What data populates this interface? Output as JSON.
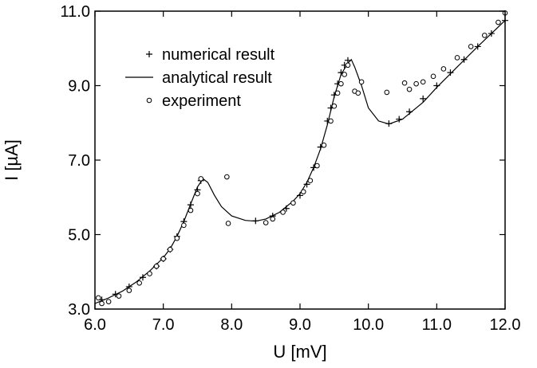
{
  "chart_data": {
    "type": "scatter",
    "title": "",
    "xlabel": "U [mV]",
    "ylabel": "I [µA]",
    "xlim": [
      6.0,
      12.0
    ],
    "ylim": [
      3.0,
      11.0
    ],
    "x_ticks": [
      "6.0",
      "7.0",
      "8.0",
      "9.0",
      "10.0",
      "11.0",
      "12.0"
    ],
    "y_ticks": [
      "3.0",
      "5.0",
      "7.0",
      "9.0",
      "11.0"
    ],
    "grid": false,
    "legend_position": "top-left",
    "series": [
      {
        "name": "numerical result",
        "marker": "plus",
        "x": [
          6.1,
          6.3,
          6.5,
          6.7,
          6.9,
          7.0,
          7.1,
          7.2,
          7.3,
          7.4,
          7.5,
          7.55,
          8.35,
          8.6,
          8.8,
          9.0,
          9.1,
          9.2,
          9.3,
          9.4,
          9.45,
          9.5,
          9.55,
          9.6,
          9.65,
          9.7,
          10.3,
          10.45,
          10.6,
          10.8,
          11.0,
          11.2,
          11.4,
          11.6,
          11.8,
          12.0
        ],
        "y": [
          3.25,
          3.4,
          3.6,
          3.85,
          4.15,
          4.35,
          4.6,
          4.95,
          5.35,
          5.8,
          6.2,
          6.45,
          5.37,
          5.5,
          5.7,
          6.05,
          6.35,
          6.8,
          7.35,
          8.05,
          8.4,
          8.75,
          9.05,
          9.35,
          9.55,
          9.68,
          7.98,
          8.1,
          8.3,
          8.65,
          9.0,
          9.35,
          9.7,
          10.05,
          10.4,
          10.75
        ]
      },
      {
        "name": "analytical result",
        "marker": "line",
        "x": [
          6.0,
          6.2,
          6.4,
          6.6,
          6.8,
          7.0,
          7.1,
          7.2,
          7.3,
          7.4,
          7.5,
          7.58,
          7.65,
          7.75,
          7.85,
          8.0,
          8.2,
          8.35,
          8.5,
          8.7,
          8.9,
          9.0,
          9.1,
          9.2,
          9.3,
          9.4,
          9.5,
          9.6,
          9.7,
          9.75,
          9.8,
          9.9,
          10.0,
          10.15,
          10.3,
          10.5,
          10.8,
          11.0,
          11.3,
          11.6,
          11.8,
          12.0
        ],
        "y": [
          3.15,
          3.3,
          3.48,
          3.72,
          4.02,
          4.38,
          4.62,
          4.95,
          5.35,
          5.82,
          6.28,
          6.5,
          6.4,
          6.05,
          5.75,
          5.5,
          5.38,
          5.36,
          5.42,
          5.6,
          5.9,
          6.1,
          6.4,
          6.8,
          7.3,
          7.95,
          8.7,
          9.3,
          9.6,
          9.7,
          9.5,
          9.0,
          8.4,
          8.05,
          7.97,
          8.1,
          8.55,
          8.95,
          9.5,
          10.05,
          10.4,
          10.75
        ]
      },
      {
        "name": "experiment",
        "marker": "circle",
        "x": [
          6.05,
          6.1,
          6.2,
          6.35,
          6.5,
          6.65,
          6.8,
          6.9,
          7.0,
          7.1,
          7.2,
          7.3,
          7.4,
          7.5,
          7.55,
          7.93,
          7.95,
          8.5,
          8.6,
          8.75,
          8.9,
          9.05,
          9.15,
          9.25,
          9.35,
          9.45,
          9.5,
          9.55,
          9.6,
          9.65,
          9.7,
          9.8,
          9.85,
          9.9,
          10.27,
          10.53,
          10.6,
          10.7,
          10.8,
          10.95,
          11.1,
          11.3,
          11.5,
          11.7,
          11.9,
          12.0
        ],
        "y": [
          3.3,
          3.15,
          3.2,
          3.35,
          3.5,
          3.7,
          3.95,
          4.15,
          4.35,
          4.6,
          4.9,
          5.25,
          5.65,
          6.1,
          6.5,
          6.55,
          5.3,
          5.32,
          5.42,
          5.6,
          5.85,
          6.15,
          6.45,
          6.85,
          7.4,
          8.05,
          8.45,
          8.8,
          9.05,
          9.3,
          9.55,
          8.85,
          8.8,
          9.1,
          8.82,
          9.07,
          8.9,
          9.05,
          9.1,
          9.25,
          9.45,
          9.75,
          10.05,
          10.35,
          10.7,
          10.95
        ]
      }
    ]
  }
}
